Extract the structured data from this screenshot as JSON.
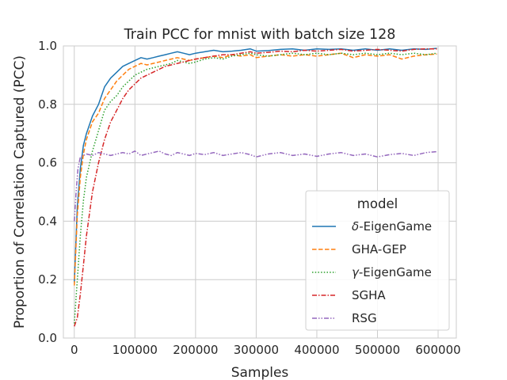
{
  "chart_data": {
    "type": "line",
    "title": "Train PCC for mnist with batch size 128",
    "xlabel": "Samples",
    "ylabel": "Proportion of Correlation Captured (PCC)",
    "xlim": [
      -18000,
      630000
    ],
    "ylim": [
      0.0,
      1.0
    ],
    "xticks": [
      0,
      100000,
      200000,
      300000,
      400000,
      500000,
      600000
    ],
    "xtick_labels": [
      "0",
      "100000",
      "200000",
      "300000",
      "400000",
      "500000",
      "600000"
    ],
    "yticks": [
      0.0,
      0.2,
      0.4,
      0.6,
      0.8,
      1.0
    ],
    "ytick_labels": [
      "0.0",
      "0.2",
      "0.4",
      "0.6",
      "0.8",
      "1.0"
    ],
    "grid": true,
    "legend": {
      "title": "model",
      "position": "lower-right"
    },
    "series": [
      {
        "name": "δ-EigenGame",
        "name_prefix": "δ",
        "name_suffix": "-EigenGame",
        "color": "#1f77b4",
        "dash": "solid",
        "x": [
          0,
          5000,
          10000,
          15000,
          20000,
          30000,
          40000,
          50000,
          60000,
          70000,
          80000,
          90000,
          100000,
          110000,
          120000,
          130000,
          140000,
          150000,
          160000,
          170000,
          180000,
          190000,
          200000,
          215000,
          230000,
          245000,
          260000,
          275000,
          290000,
          300000,
          320000,
          340000,
          360000,
          380000,
          400000,
          420000,
          440000,
          460000,
          480000,
          500000,
          520000,
          540000,
          560000,
          580000,
          598000
        ],
        "y": [
          0.19,
          0.45,
          0.58,
          0.66,
          0.7,
          0.76,
          0.8,
          0.86,
          0.89,
          0.91,
          0.93,
          0.94,
          0.95,
          0.96,
          0.955,
          0.96,
          0.965,
          0.97,
          0.975,
          0.98,
          0.975,
          0.97,
          0.975,
          0.98,
          0.985,
          0.98,
          0.982,
          0.985,
          0.99,
          0.982,
          0.984,
          0.988,
          0.99,
          0.985,
          0.99,
          0.988,
          0.99,
          0.985,
          0.99,
          0.985,
          0.99,
          0.985,
          0.99,
          0.988,
          0.992
        ]
      },
      {
        "name": "GHA-GEP",
        "name_prefix": "",
        "name_suffix": "GHA-GEP",
        "color": "#ff7f0e",
        "dash": "dashed",
        "x": [
          0,
          5000,
          10000,
          15000,
          20000,
          30000,
          40000,
          50000,
          60000,
          70000,
          80000,
          90000,
          100000,
          110000,
          120000,
          130000,
          140000,
          150000,
          160000,
          170000,
          180000,
          190000,
          200000,
          215000,
          230000,
          245000,
          260000,
          275000,
          290000,
          300000,
          320000,
          340000,
          360000,
          380000,
          400000,
          420000,
          440000,
          460000,
          480000,
          500000,
          520000,
          540000,
          560000,
          580000,
          598000
        ],
        "y": [
          0.18,
          0.42,
          0.55,
          0.63,
          0.68,
          0.74,
          0.77,
          0.82,
          0.85,
          0.88,
          0.9,
          0.92,
          0.93,
          0.94,
          0.935,
          0.94,
          0.945,
          0.95,
          0.955,
          0.96,
          0.955,
          0.95,
          0.955,
          0.96,
          0.965,
          0.96,
          0.97,
          0.965,
          0.97,
          0.96,
          0.965,
          0.97,
          0.965,
          0.97,
          0.965,
          0.97,
          0.975,
          0.96,
          0.97,
          0.965,
          0.97,
          0.955,
          0.965,
          0.97,
          0.972
        ]
      },
      {
        "name": "γ-EigenGame",
        "name_prefix": "γ",
        "name_suffix": "-EigenGame",
        "color": "#2ca02c",
        "dash": "dotted",
        "x": [
          0,
          5000,
          10000,
          15000,
          20000,
          30000,
          40000,
          50000,
          60000,
          70000,
          80000,
          90000,
          100000,
          110000,
          120000,
          130000,
          140000,
          150000,
          160000,
          170000,
          180000,
          190000,
          200000,
          215000,
          230000,
          245000,
          260000,
          275000,
          290000,
          300000,
          320000,
          340000,
          360000,
          380000,
          400000,
          420000,
          440000,
          460000,
          480000,
          500000,
          520000,
          540000,
          560000,
          580000,
          598000
        ],
        "y": [
          0.05,
          0.2,
          0.35,
          0.47,
          0.55,
          0.64,
          0.71,
          0.78,
          0.81,
          0.83,
          0.86,
          0.88,
          0.9,
          0.91,
          0.92,
          0.925,
          0.93,
          0.935,
          0.94,
          0.95,
          0.945,
          0.94,
          0.945,
          0.955,
          0.96,
          0.955,
          0.965,
          0.97,
          0.975,
          0.97,
          0.965,
          0.97,
          0.975,
          0.97,
          0.975,
          0.97,
          0.975,
          0.97,
          0.975,
          0.97,
          0.975,
          0.97,
          0.975,
          0.97,
          0.975
        ]
      },
      {
        "name": "SGHA",
        "name_prefix": "",
        "name_suffix": "SGHA",
        "color": "#d62728",
        "dash": "dashdot",
        "x": [
          0,
          5000,
          10000,
          15000,
          20000,
          30000,
          40000,
          50000,
          60000,
          70000,
          80000,
          90000,
          100000,
          110000,
          120000,
          130000,
          140000,
          150000,
          160000,
          170000,
          180000,
          190000,
          200000,
          215000,
          230000,
          245000,
          260000,
          275000,
          290000,
          300000,
          320000,
          340000,
          360000,
          380000,
          400000,
          420000,
          440000,
          460000,
          480000,
          500000,
          520000,
          540000,
          560000,
          580000,
          598000
        ],
        "y": [
          0.04,
          0.07,
          0.15,
          0.25,
          0.35,
          0.5,
          0.6,
          0.68,
          0.74,
          0.78,
          0.82,
          0.85,
          0.87,
          0.89,
          0.9,
          0.91,
          0.92,
          0.93,
          0.935,
          0.94,
          0.945,
          0.95,
          0.955,
          0.96,
          0.965,
          0.97,
          0.97,
          0.975,
          0.98,
          0.975,
          0.978,
          0.982,
          0.98,
          0.985,
          0.982,
          0.985,
          0.988,
          0.982,
          0.985,
          0.988,
          0.985,
          0.982,
          0.988,
          0.99,
          0.99
        ]
      },
      {
        "name": "RSG",
        "name_prefix": "",
        "name_suffix": "RSG",
        "color": "#9467bd",
        "dash": "dashdotdot",
        "x": [
          0,
          3000,
          6000,
          10000,
          15000,
          20000,
          30000,
          40000,
          50000,
          60000,
          70000,
          80000,
          90000,
          100000,
          110000,
          120000,
          130000,
          140000,
          150000,
          160000,
          170000,
          180000,
          190000,
          200000,
          215000,
          230000,
          245000,
          260000,
          275000,
          290000,
          300000,
          320000,
          340000,
          360000,
          380000,
          400000,
          420000,
          440000,
          460000,
          480000,
          500000,
          520000,
          540000,
          560000,
          580000,
          598000
        ],
        "y": [
          0.4,
          0.5,
          0.58,
          0.62,
          0.625,
          0.63,
          0.625,
          0.635,
          0.63,
          0.625,
          0.63,
          0.635,
          0.63,
          0.64,
          0.625,
          0.63,
          0.635,
          0.64,
          0.63,
          0.625,
          0.635,
          0.63,
          0.625,
          0.632,
          0.628,
          0.635,
          0.625,
          0.63,
          0.635,
          0.628,
          0.62,
          0.63,
          0.635,
          0.625,
          0.63,
          0.622,
          0.63,
          0.635,
          0.625,
          0.63,
          0.62,
          0.628,
          0.632,
          0.625,
          0.635,
          0.638
        ]
      }
    ]
  }
}
